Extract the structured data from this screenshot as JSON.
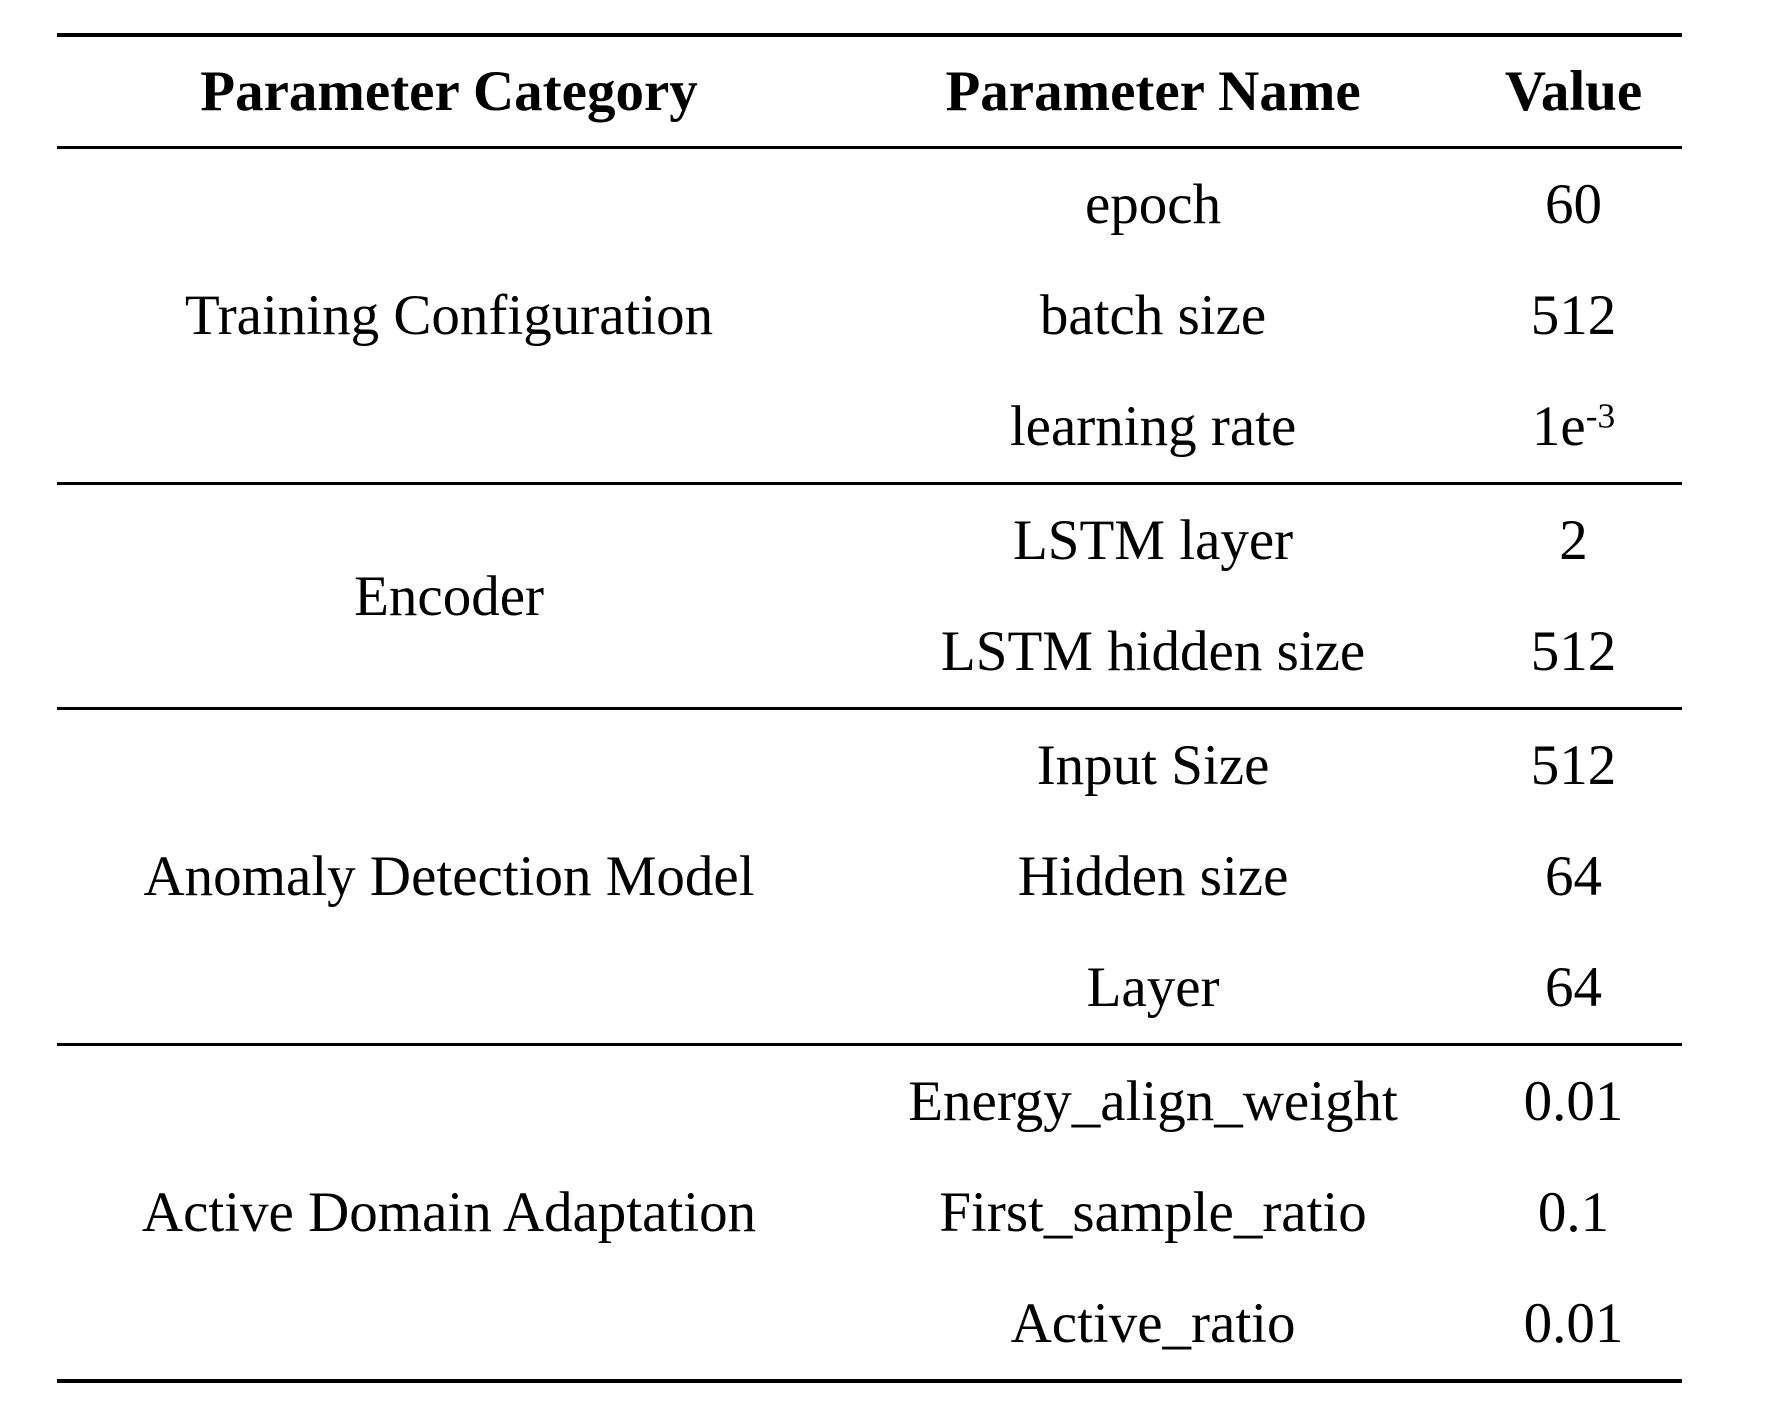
{
  "table": {
    "headers": {
      "category": "Parameter Category",
      "name": "Parameter Name",
      "value": "Value"
    },
    "sections": [
      {
        "category": "Training Configuration",
        "rows": [
          {
            "name": "epoch",
            "value": "60"
          },
          {
            "name": "batch size",
            "value": "512"
          },
          {
            "name": "learning rate",
            "value": "1e",
            "value_sup": "-3"
          }
        ]
      },
      {
        "category": "Encoder",
        "rows": [
          {
            "name": "LSTM layer",
            "value": "2"
          },
          {
            "name": "LSTM hidden size",
            "value": "512"
          }
        ]
      },
      {
        "category": "Anomaly Detection Model",
        "rows": [
          {
            "name": "Input Size",
            "value": "512"
          },
          {
            "name": "Hidden size",
            "value": "64"
          },
          {
            "name": "Layer",
            "value": "64"
          }
        ]
      },
      {
        "category": "Active Domain Adaptation",
        "rows": [
          {
            "name": "Energy_align_weight",
            "value": "0.01"
          },
          {
            "name": "First_sample_ratio",
            "value": "0.1"
          },
          {
            "name": "Active_ratio",
            "value": "0.01"
          }
        ]
      }
    ],
    "colors": {
      "text": "#000000",
      "rule": "#000000",
      "background": "#ffffff"
    }
  }
}
